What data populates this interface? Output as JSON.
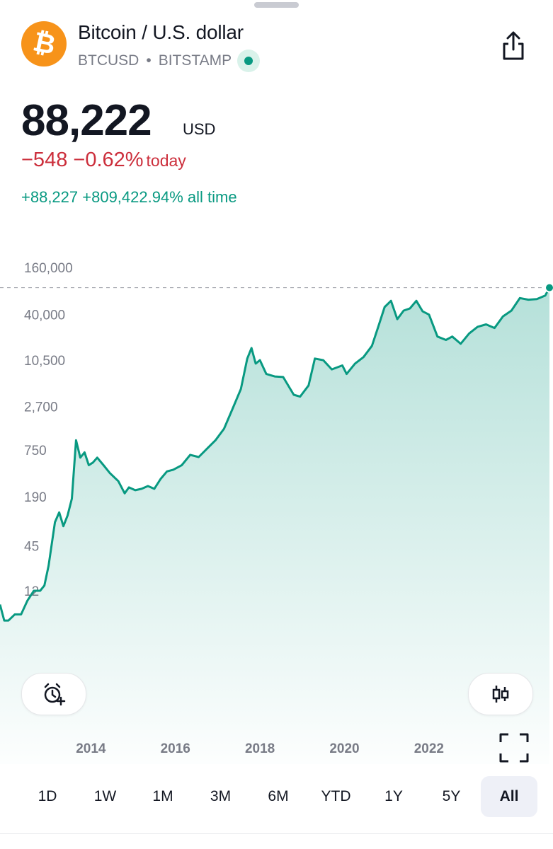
{
  "header": {
    "name": "Bitcoin / U.S. dollar",
    "symbol": "BTCUSD",
    "separator": "•",
    "exchange": "BITSTAMP",
    "logo_glyph": "₿",
    "logo_color": "#f7931a",
    "share_icon": "share-icon"
  },
  "quote": {
    "price": "88,222",
    "currency": "USD",
    "change": "−548 −0.62%",
    "change_label": "today",
    "all_time": "+88,227 +809,422.94% all time"
  },
  "colors": {
    "line": "#089981",
    "down": "#cc2f3c",
    "up": "#089981"
  },
  "chart_data": {
    "type": "area",
    "scale": "log",
    "y_ticks": [
      160000,
      40000,
      10500,
      2700,
      750,
      190,
      45,
      12
    ],
    "y_tick_labels": [
      "160,000",
      "40,000",
      "10,500",
      "2,700",
      "750",
      "190",
      "45",
      "12"
    ],
    "x_tick_labels": [
      "2014",
      "2016",
      "2018",
      "2020",
      "2022"
    ],
    "x_ticks": [
      2014,
      2016,
      2018,
      2020,
      2022
    ],
    "current_value": 88222,
    "series": [
      {
        "x": [
          2012.0,
          2012.1,
          2012.2,
          2012.35,
          2012.5,
          2012.65,
          2012.8,
          2012.95,
          2013.05,
          2013.15,
          2013.3,
          2013.4,
          2013.5,
          2013.6,
          2013.7,
          2013.8,
          2013.9,
          2014.0,
          2014.1,
          2014.2,
          2014.3,
          2014.45,
          2014.6,
          2014.8,
          2014.95,
          2015.05,
          2015.2,
          2015.35,
          2015.5,
          2015.65,
          2015.8,
          2015.95,
          2016.1,
          2016.3,
          2016.5,
          2016.7,
          2016.9,
          2017.1,
          2017.3,
          2017.5,
          2017.7,
          2017.85,
          2017.95,
          2018.05,
          2018.15,
          2018.3,
          2018.5,
          2018.7,
          2018.95,
          2019.1,
          2019.3,
          2019.45,
          2019.65,
          2019.85,
          2020.1,
          2020.2,
          2020.4,
          2020.6,
          2020.8,
          2020.95,
          2021.1,
          2021.25,
          2021.4,
          2021.55,
          2021.7,
          2021.85,
          2022.0,
          2022.15,
          2022.35,
          2022.55,
          2022.7,
          2022.9,
          2023.1,
          2023.3,
          2023.5,
          2023.7,
          2023.9,
          2024.1,
          2024.3,
          2024.5,
          2024.7,
          2024.9,
          2025.0
        ],
        "y": [
          8,
          5,
          5,
          6,
          6,
          9,
          12,
          12,
          14,
          25,
          90,
          120,
          80,
          110,
          180,
          1000,
          600,
          700,
          480,
          520,
          600,
          480,
          380,
          300,
          210,
          250,
          230,
          240,
          260,
          240,
          320,
          400,
          420,
          480,
          650,
          610,
          780,
          1000,
          1400,
          2500,
          4500,
          11000,
          15000,
          9500,
          10500,
          7000,
          6500,
          6400,
          3800,
          3600,
          5000,
          11000,
          10500,
          8000,
          9000,
          7000,
          9500,
          11500,
          16000,
          28000,
          50000,
          60000,
          35000,
          45000,
          48000,
          60000,
          44000,
          40000,
          21000,
          19000,
          21000,
          17000,
          23000,
          28000,
          30000,
          27000,
          38000,
          45000,
          65000,
          62000,
          63000,
          70000,
          88222
        ]
      }
    ]
  },
  "controls": {
    "alert_icon": "alarm-plus-icon",
    "candles_icon": "candles-icon",
    "fullscreen_icon": "fullscreen-icon"
  },
  "ranges": [
    "1D",
    "1W",
    "1M",
    "3M",
    "6M",
    "YTD",
    "1Y",
    "5Y",
    "All"
  ],
  "active_range": "All"
}
